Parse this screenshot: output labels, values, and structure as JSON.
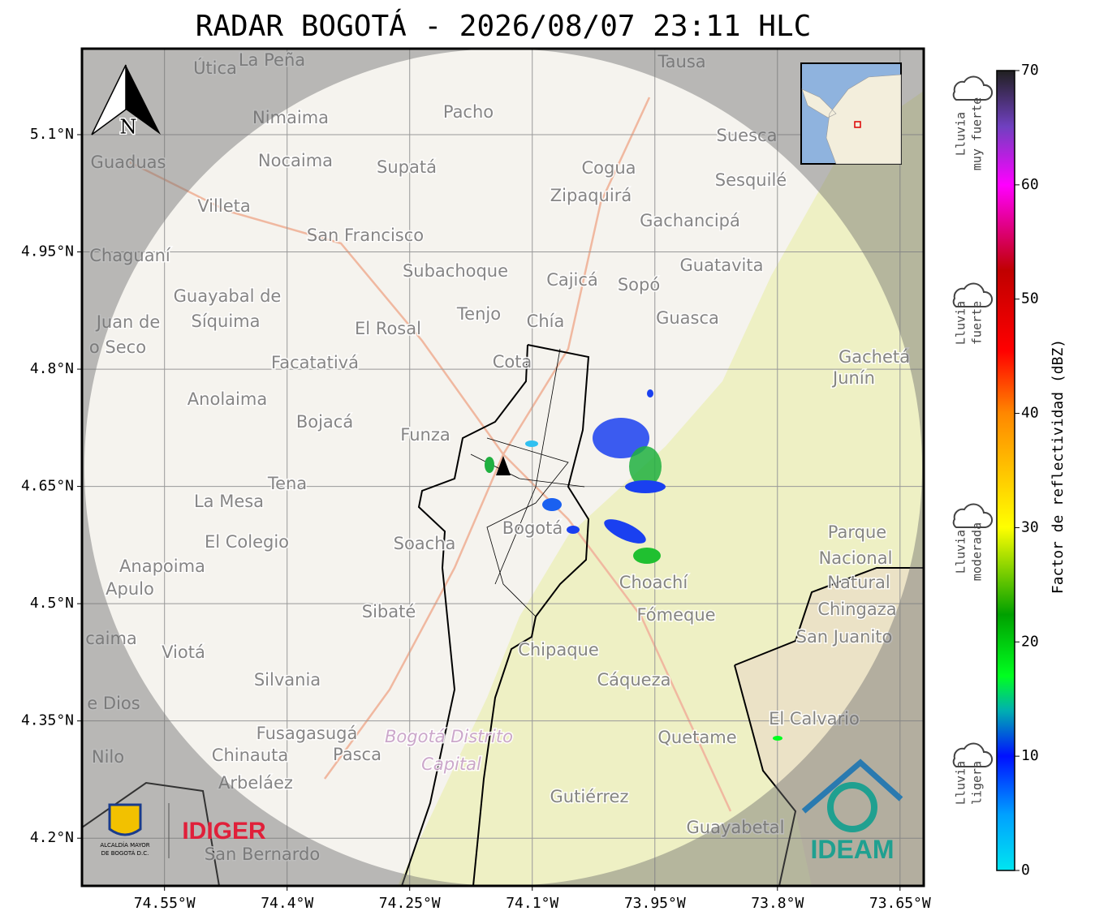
{
  "title": "RADAR BOGOTÁ - 2026/08/07 23:11 HLC",
  "map": {
    "xlim": [
      -74.651,
      -73.621
    ],
    "ylim": [
      4.139,
      5.21
    ],
    "xticks": [
      {
        "value": -74.55,
        "label": "74.55°W"
      },
      {
        "value": -74.4,
        "label": "74.4°W"
      },
      {
        "value": -74.25,
        "label": "74.25°W"
      },
      {
        "value": -74.1,
        "label": "74.1°W"
      },
      {
        "value": -73.95,
        "label": "73.95°W"
      },
      {
        "value": -73.8,
        "label": "73.8°W"
      },
      {
        "value": -73.65,
        "label": "73.65°W"
      }
    ],
    "yticks": [
      {
        "value": 4.2,
        "label": "4.2°N"
      },
      {
        "value": 4.35,
        "label": "4.35°N"
      },
      {
        "value": 4.5,
        "label": "4.5°N"
      },
      {
        "value": 4.65,
        "label": "4.65°N"
      },
      {
        "value": 4.8,
        "label": "4.8°N"
      },
      {
        "value": 4.95,
        "label": "4.95°N"
      },
      {
        "value": 5.1,
        "label": "5.1°N"
      }
    ],
    "places": [
      "Útica",
      "La Peña",
      "Tausa",
      "Pacho",
      "Nimaima",
      "Suesca",
      "Guaduas",
      "Nocaima",
      "Supatá",
      "Cogua",
      "Sesquilé",
      "Zipaquirá",
      "Villeta",
      "Gachancipá",
      "San Francisco",
      "Chaguaní",
      "Guatavita",
      "Subachoque",
      "Cajicá",
      "Sopó",
      "Guayabal de",
      "Síquima",
      "Juan de",
      "Tenjo",
      "Chía",
      "Guasca",
      "El Rosal",
      "o Seco",
      "Facatativá",
      "Cota",
      "Gachetá",
      "Junín",
      "Anolaima",
      "Bojacá",
      "Funza",
      "Tena",
      "La Mesa",
      "Parque",
      "Nacional",
      "Bogotá",
      "Soacha",
      "El Colegio",
      "Anapoima",
      "Natural",
      "Apulo",
      "Choachí",
      "Chingaza",
      "Sibaté",
      "Fómeque",
      "caima",
      "San Juanito",
      "Viotá",
      "Chipaque",
      "Silvania",
      "Cáqueza",
      "e Dios",
      "El Calvario",
      "Fusagasugá",
      "Bogotá Distrito",
      "Quetame",
      "Nilo",
      "Chinauta",
      "Pasca",
      "Capital",
      "Arbeláez",
      "Gutiérrez",
      "Guayabetal",
      "San Bernardo"
    ]
  },
  "north": "N",
  "logos": {
    "alcaldia": [
      "ALCALDÍA MAYOR",
      "DE BOGOTÁ D.C."
    ],
    "idiger": "IDIGER",
    "ideam": "IDEAM"
  },
  "colorbar": {
    "label": "Factor de reflectividad (dBZ)",
    "lim": [
      0,
      70
    ],
    "ticks": [
      0,
      10,
      20,
      30,
      40,
      50,
      60,
      70
    ]
  },
  "rain_levels": [
    [
      "Lluvia",
      "muy fuerte"
    ],
    [
      "Lluvia",
      "fuerte"
    ],
    [
      "Lluvia",
      "moderada"
    ],
    [
      "Lluvia",
      "ligera"
    ]
  ]
}
